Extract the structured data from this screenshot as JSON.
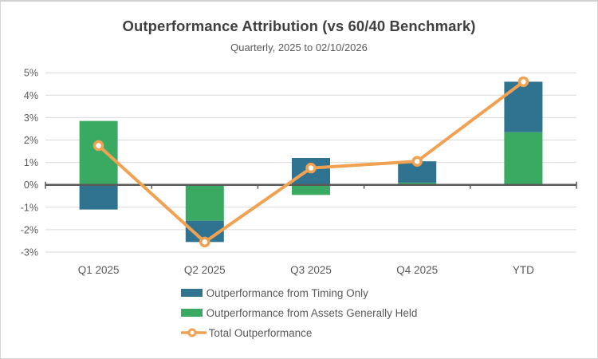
{
  "header": {
    "title": "Outperformance Attribution (vs 60/40 Benchmark)",
    "subtitle": "Quarterly, 2025 to 02/10/2026"
  },
  "chart_data": {
    "type": "bar",
    "subtype": "stacked-bars-with-line-overlay",
    "title": "Outperformance Attribution (vs 60/40 Benchmark)",
    "subtitle": "Quarterly, 2025 to 02/10/2026",
    "categories": [
      "Q1 2025",
      "Q2 2025",
      "Q3 2025",
      "Q4 2025",
      "YTD"
    ],
    "series": [
      {
        "name": "Outperformance from Timing Only",
        "type": "bar",
        "color": "#2F7390",
        "values": [
          -1.1,
          -0.95,
          1.2,
          0.95,
          2.25
        ]
      },
      {
        "name": "Outperformance from Assets Generally Held",
        "type": "bar",
        "color": "#3AAA62",
        "values": [
          2.85,
          -1.6,
          -0.45,
          0.1,
          2.35
        ]
      },
      {
        "name": "Total Outperformance",
        "type": "line",
        "color": "#F0A152",
        "values": [
          1.75,
          -2.55,
          0.75,
          1.05,
          4.6
        ]
      }
    ],
    "stacked": true,
    "ylim": [
      -3,
      5
    ],
    "ytick_step": 1,
    "ytick_suffix": "%",
    "ytick_labels": [
      "5%",
      "4%",
      "3%",
      "2%",
      "1%",
      "0%",
      "-1%",
      "-2%",
      "-3%"
    ],
    "grid": true,
    "tick_marks": "between-categories",
    "legend_position": "bottom",
    "xlabel": "",
    "ylabel": ""
  },
  "colors": {
    "timing": "#2F7390",
    "assets": "#3AAA62",
    "total": "#F0A152",
    "axis": "#595959",
    "gridline": "#D9D9D9",
    "title_text": "#404040",
    "label_text": "#595959",
    "marker_fill": "#FFFFFF",
    "background": "#FFFFFF",
    "border": "#D4D4D4"
  }
}
